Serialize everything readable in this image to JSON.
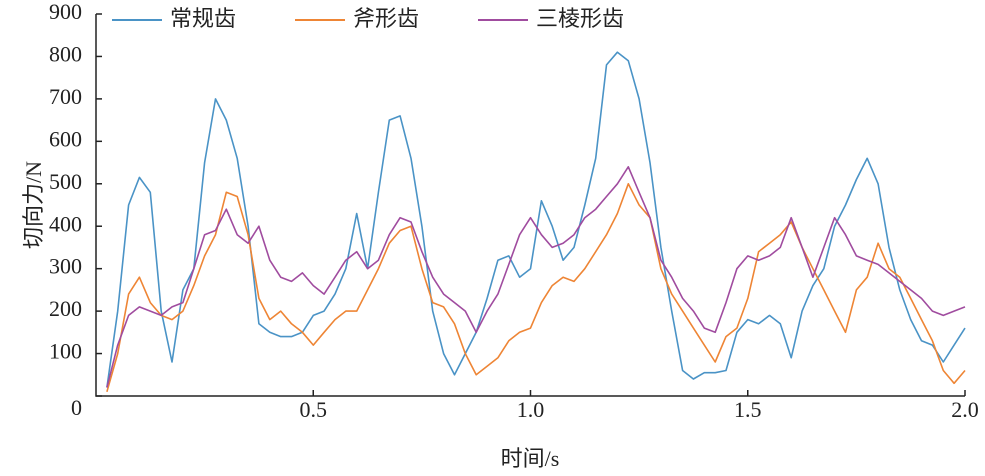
{
  "chart_data": {
    "type": "line",
    "xlabel": "时间/s",
    "ylabel": "切向力/N",
    "x": [
      0.025,
      0.05,
      0.075,
      0.1,
      0.125,
      0.15,
      0.175,
      0.2,
      0.225,
      0.25,
      0.275,
      0.3,
      0.325,
      0.35,
      0.375,
      0.4,
      0.425,
      0.45,
      0.475,
      0.5,
      0.525,
      0.55,
      0.575,
      0.6,
      0.625,
      0.65,
      0.675,
      0.7,
      0.725,
      0.75,
      0.775,
      0.8,
      0.825,
      0.85,
      0.875,
      0.9,
      0.925,
      0.95,
      0.975,
      1.0,
      1.025,
      1.05,
      1.075,
      1.1,
      1.125,
      1.15,
      1.175,
      1.2,
      1.225,
      1.25,
      1.275,
      1.3,
      1.325,
      1.35,
      1.375,
      1.4,
      1.425,
      1.45,
      1.475,
      1.5,
      1.525,
      1.55,
      1.575,
      1.6,
      1.625,
      1.65,
      1.675,
      1.7,
      1.725,
      1.75,
      1.775,
      1.8,
      1.825,
      1.85,
      1.875,
      1.9,
      1.925,
      1.95,
      1.975,
      2.0
    ],
    "series": [
      {
        "name": "常规齿",
        "color": "#4a93c6",
        "values": [
          20,
          200,
          450,
          515,
          480,
          200,
          80,
          250,
          300,
          550,
          700,
          650,
          560,
          400,
          170,
          150,
          140,
          140,
          150,
          190,
          200,
          240,
          300,
          430,
          300,
          480,
          650,
          660,
          560,
          400,
          200,
          100,
          50,
          100,
          150,
          230,
          320,
          330,
          280,
          300,
          460,
          400,
          320,
          350,
          450,
          560,
          780,
          810,
          790,
          700,
          550,
          350,
          200,
          60,
          40,
          55,
          55,
          60,
          150,
          180,
          170,
          190,
          170,
          90,
          200,
          260,
          300,
          400,
          450,
          510,
          560,
          500,
          350,
          250,
          180,
          130,
          120,
          80,
          120,
          160
        ]
      },
      {
        "name": "斧形齿",
        "color": "#ee8535",
        "values": [
          10,
          100,
          240,
          280,
          220,
          190,
          180,
          200,
          260,
          330,
          380,
          480,
          470,
          380,
          230,
          180,
          200,
          170,
          150,
          120,
          150,
          180,
          200,
          200,
          250,
          300,
          360,
          390,
          400,
          300,
          220,
          210,
          170,
          100,
          50,
          70,
          90,
          130,
          150,
          160,
          220,
          260,
          280,
          270,
          300,
          340,
          380,
          430,
          500,
          450,
          420,
          300,
          240,
          200,
          160,
          120,
          80,
          140,
          160,
          230,
          340,
          360,
          380,
          410,
          350,
          300,
          250,
          200,
          150,
          250,
          280,
          360,
          300,
          280,
          230,
          180,
          130,
          60,
          30,
          60
        ]
      },
      {
        "name": "三棱形齿",
        "color": "#a04c9f",
        "values": [
          20,
          120,
          190,
          210,
          200,
          190,
          210,
          220,
          300,
          380,
          390,
          440,
          380,
          360,
          400,
          320,
          280,
          270,
          290,
          260,
          240,
          280,
          320,
          340,
          300,
          320,
          380,
          420,
          410,
          340,
          280,
          240,
          220,
          200,
          150,
          200,
          240,
          310,
          380,
          420,
          380,
          350,
          360,
          380,
          420,
          440,
          470,
          500,
          540,
          480,
          420,
          320,
          280,
          230,
          200,
          160,
          150,
          220,
          300,
          330,
          320,
          330,
          350,
          420,
          350,
          280,
          350,
          420,
          380,
          330,
          320,
          310,
          290,
          270,
          250,
          230,
          200,
          190,
          200,
          210
        ]
      }
    ],
    "xlim": [
      0,
      2.0
    ],
    "xticks": [
      0.5,
      {
        "value": 1.0,
        "label": "1.0"
      },
      1.5,
      {
        "value": 2.0,
        "label": "2.0"
      }
    ],
    "ylim": [
      0,
      900
    ],
    "yticks": [
      0,
      100,
      200,
      300,
      400,
      500,
      600,
      700,
      800,
      900
    ],
    "grid": false,
    "legend": "upper left"
  }
}
